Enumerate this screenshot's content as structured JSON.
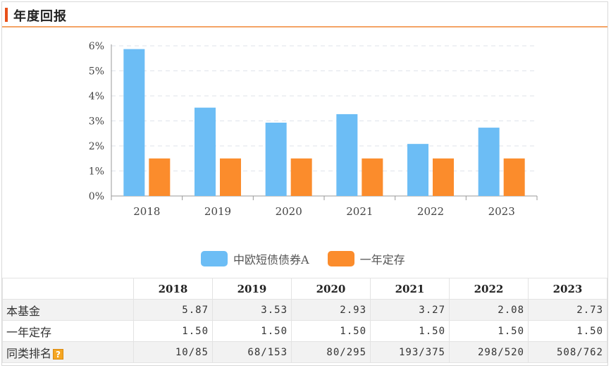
{
  "header": {
    "title": "年度回报"
  },
  "colors": {
    "fund": "#6cbdf5",
    "deposit": "#fb8c2c",
    "accent": "#e8501a",
    "header_line": "#f4a466"
  },
  "chart_data": {
    "type": "bar",
    "categories": [
      "2018",
      "2019",
      "2020",
      "2021",
      "2022",
      "2023"
    ],
    "series": [
      {
        "name": "中欧短债债券A",
        "values": [
          5.87,
          3.53,
          2.93,
          3.27,
          2.08,
          2.73
        ]
      },
      {
        "name": "一年定存",
        "values": [
          1.5,
          1.5,
          1.5,
          1.5,
          1.5,
          1.5
        ]
      }
    ],
    "y_ticks": [
      "0%",
      "1%",
      "2%",
      "3%",
      "4%",
      "5%",
      "6%"
    ],
    "ylim": [
      0,
      6
    ],
    "grid": true,
    "legend": "bottom"
  },
  "table": {
    "years": [
      "2018",
      "2019",
      "2020",
      "2021",
      "2022",
      "2023"
    ],
    "rows": [
      {
        "label": "本基金",
        "values": [
          "5.87",
          "3.53",
          "2.93",
          "3.27",
          "2.08",
          "2.73"
        ]
      },
      {
        "label": "一年定存",
        "values": [
          "1.50",
          "1.50",
          "1.50",
          "1.50",
          "1.50",
          "1.50"
        ]
      },
      {
        "label": "同类排名",
        "values": [
          "10/85",
          "68/153",
          "80/295",
          "193/375",
          "298/520",
          "508/762"
        ],
        "help_icon": "?"
      }
    ]
  }
}
